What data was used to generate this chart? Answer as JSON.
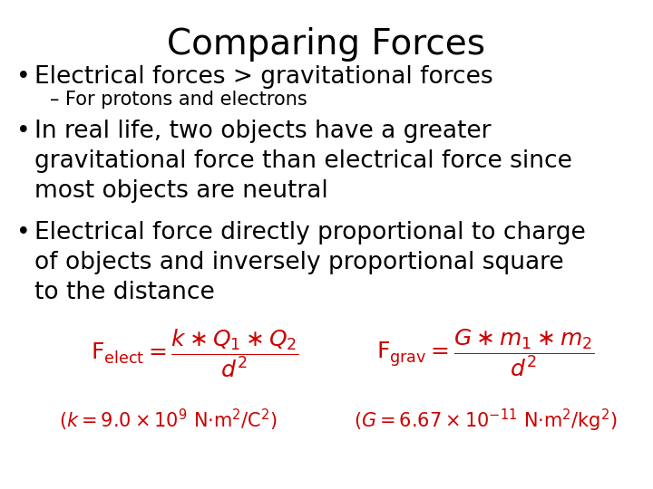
{
  "title": "Comparing Forces",
  "title_fontsize": 28,
  "title_color": "#000000",
  "background_color": "#ffffff",
  "bullet1": "Electrical forces > gravitational forces",
  "bullet1_fontsize": 19,
  "sub_bullet1": "– For protons and electrons",
  "sub_bullet1_fontsize": 15,
  "bullet2_line1": "In real life, two objects have a greater",
  "bullet2_line2": "gravitational force than electrical force since",
  "bullet2_line3": "most objects are neutral",
  "bullet2_fontsize": 19,
  "bullet3_line1": "Electrical force directly proportional to charge",
  "bullet3_line2": "of objects and inversely proportional square",
  "bullet3_line3": "to the distance",
  "bullet3_fontsize": 19,
  "formula_color": "#cc0000",
  "formula_fontsize": 15,
  "const_fontsize": 13
}
